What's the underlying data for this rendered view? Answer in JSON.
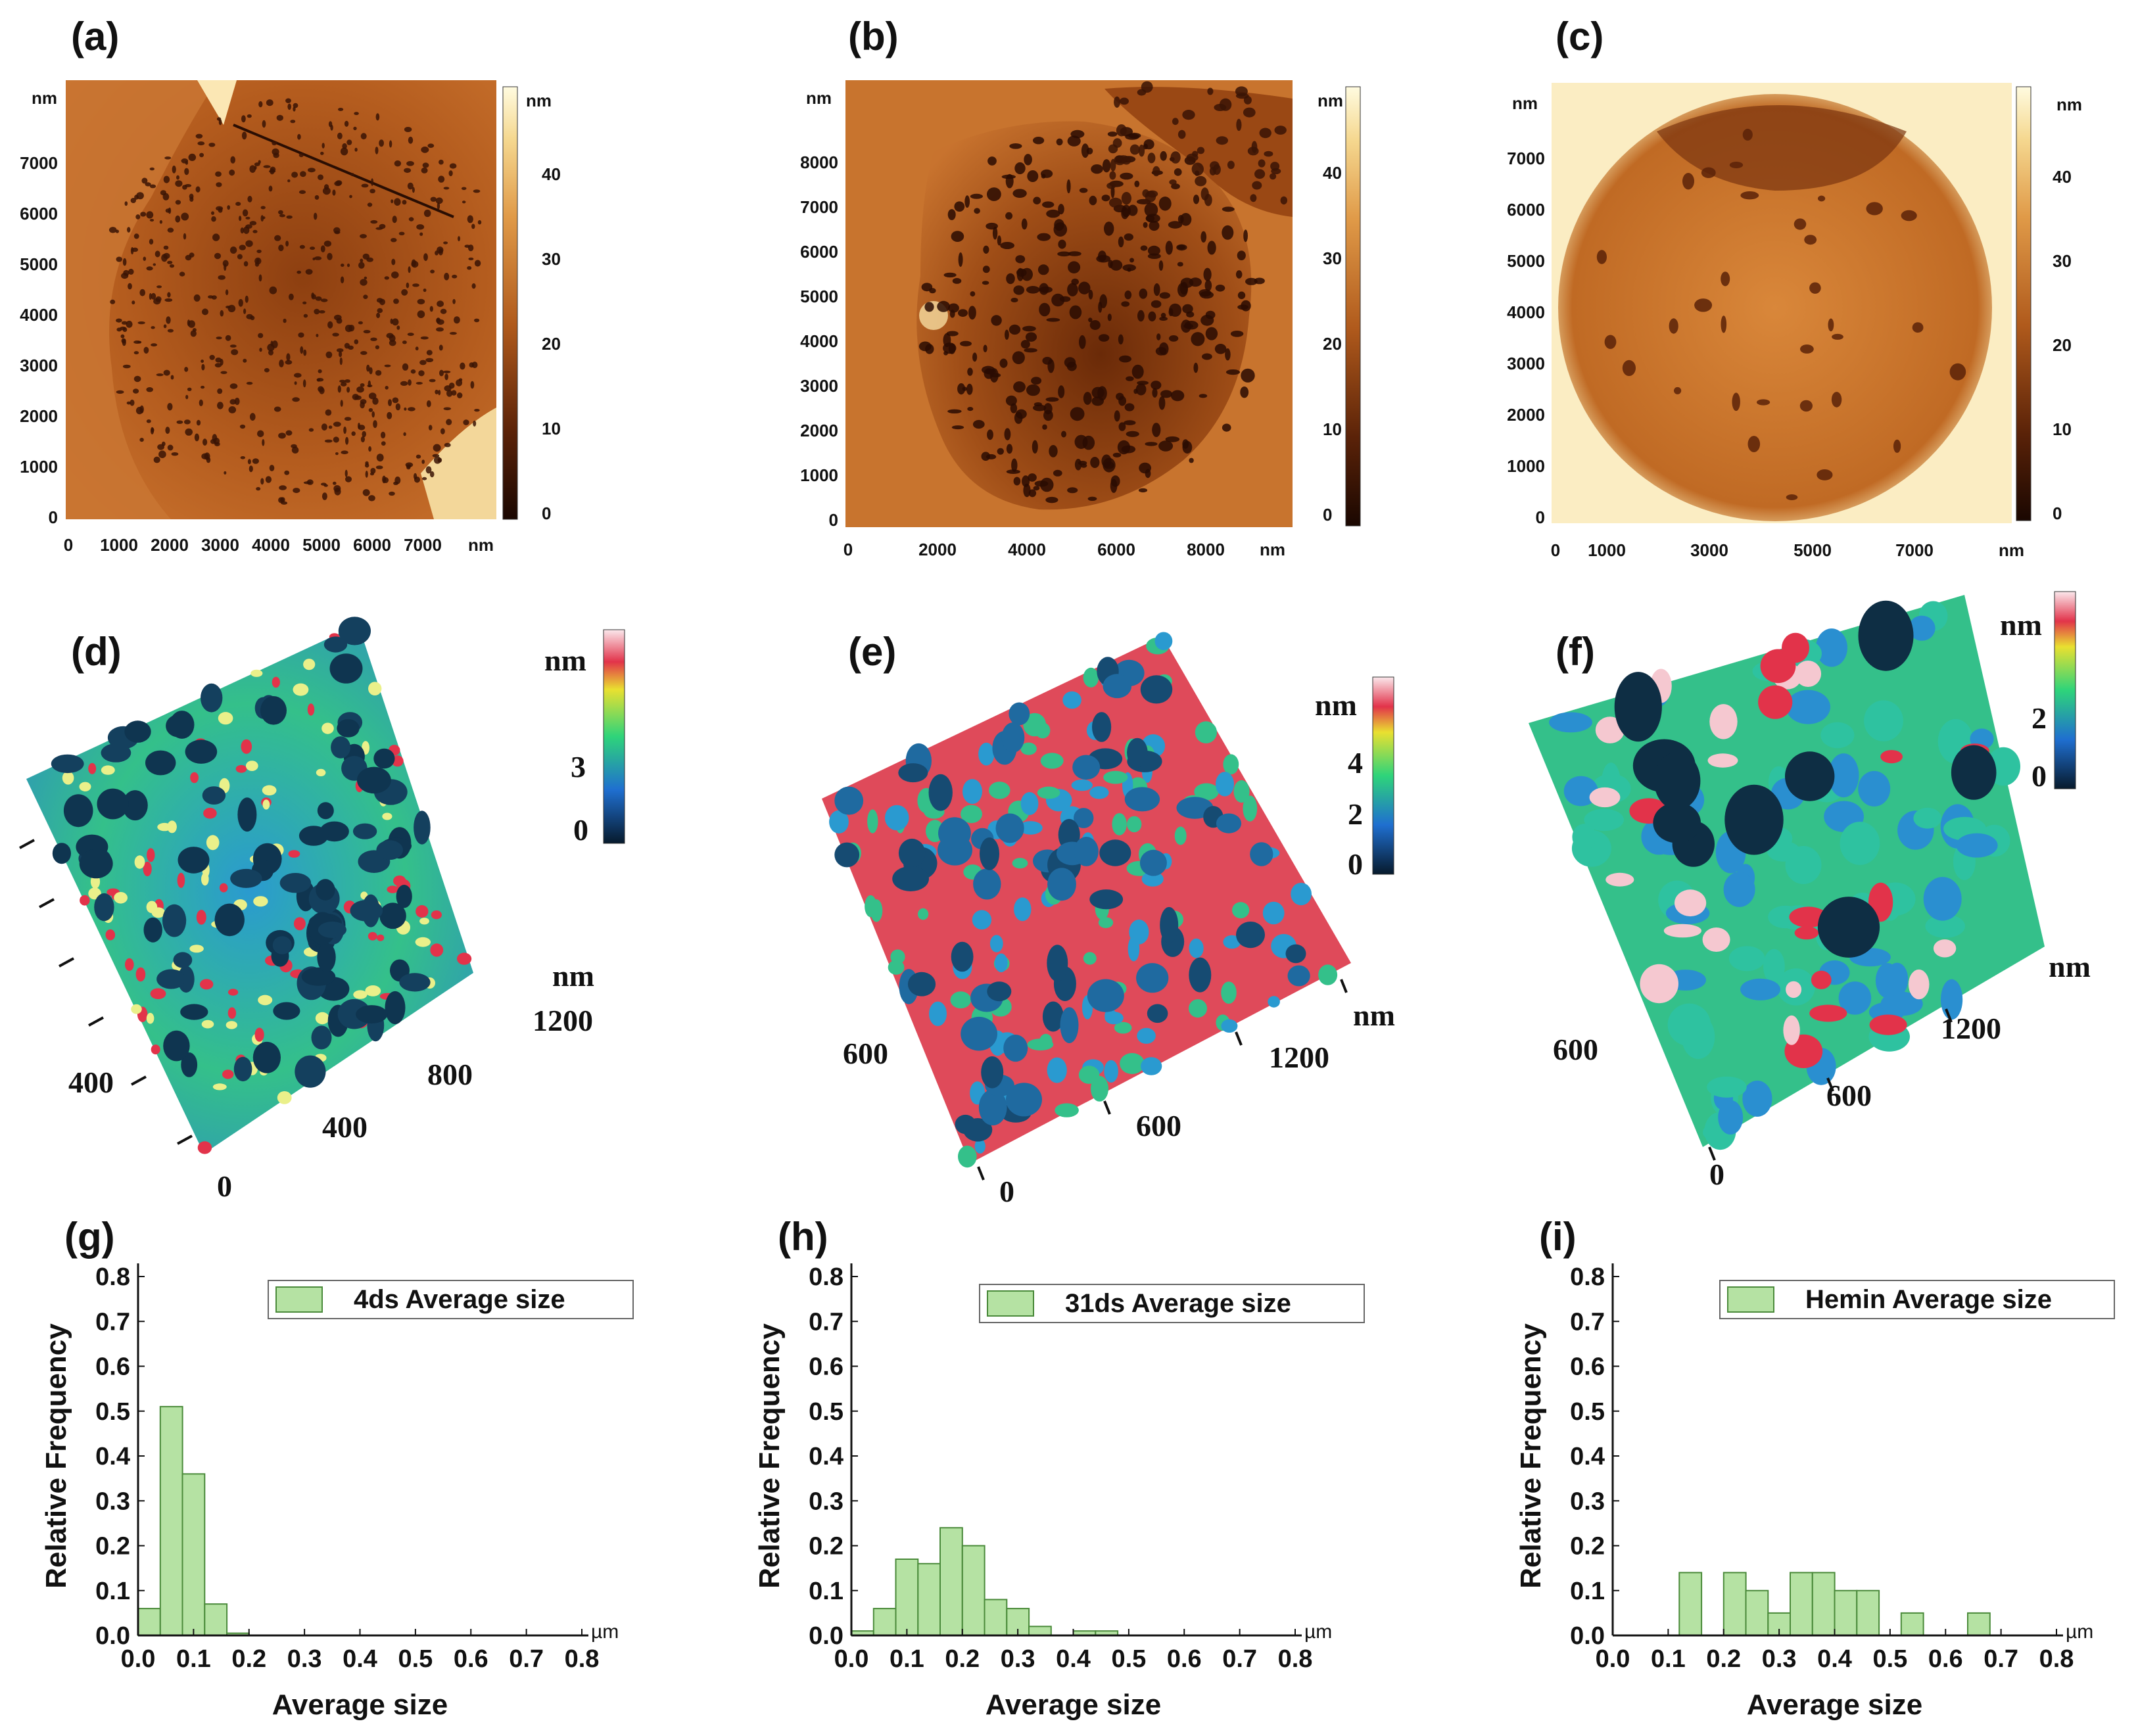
{
  "panels": {
    "a": {
      "label": "(a)",
      "unit": "nm",
      "colorbar_unit": "nm",
      "x_ticks": [
        "0",
        "1000",
        "2000",
        "3000",
        "4000",
        "5000",
        "6000",
        "7000"
      ],
      "y_ticks": [
        "0",
        "1000",
        "2000",
        "3000",
        "4000",
        "5000",
        "6000",
        "7000"
      ],
      "cb_ticks": [
        "0",
        "10",
        "20",
        "30",
        "40"
      ]
    },
    "b": {
      "label": "(b)",
      "unit": "nm",
      "colorbar_unit": "nm",
      "x_ticks": [
        "0",
        "2000",
        "4000",
        "6000",
        "8000"
      ],
      "y_ticks": [
        "0",
        "1000",
        "2000",
        "3000",
        "4000",
        "5000",
        "6000",
        "7000",
        "8000"
      ],
      "cb_ticks": [
        "0",
        "10",
        "20",
        "30",
        "40"
      ]
    },
    "c": {
      "label": "(c)",
      "unit": "nm",
      "colorbar_unit": "nm",
      "x_ticks": [
        "0",
        "1000",
        "3000",
        "5000",
        "7000"
      ],
      "y_ticks": [
        "0",
        "1000",
        "2000",
        "3000",
        "4000",
        "5000",
        "6000",
        "7000"
      ],
      "cb_ticks": [
        "0",
        "10",
        "20",
        "30",
        "40"
      ]
    },
    "d": {
      "label": "(d)",
      "unit": "nm",
      "colorbar_unit": "nm",
      "cb_ticks": [
        "0",
        "3"
      ],
      "axis_ticks": [
        "0",
        "400",
        "800",
        "1200",
        "400"
      ]
    },
    "e": {
      "label": "(e)",
      "unit": "nm",
      "colorbar_unit": "nm",
      "cb_ticks": [
        "0",
        "2",
        "4"
      ],
      "axis_ticks": [
        "0",
        "600",
        "1200",
        "600"
      ]
    },
    "f": {
      "label": "(f)",
      "unit": "nm",
      "colorbar_unit": "nm",
      "cb_ticks": [
        "0",
        "2"
      ],
      "axis_ticks": [
        "0",
        "600",
        "1200",
        "600"
      ]
    }
  },
  "chart_data": [
    {
      "id": "g",
      "panel_label": "(g)",
      "type": "bar",
      "legend": "4ds Average size",
      "xlabel": "Average size",
      "ylabel": "Relative Frequency",
      "x_unit": "µm",
      "xlim": [
        0,
        0.8
      ],
      "ylim": [
        0,
        0.8
      ],
      "bin_width": 0.04,
      "bins": [
        {
          "x0": 0.0,
          "value": 0.06
        },
        {
          "x0": 0.04,
          "value": 0.51
        },
        {
          "x0": 0.08,
          "value": 0.36
        },
        {
          "x0": 0.12,
          "value": 0.07
        },
        {
          "x0": 0.16,
          "value": 0.005
        }
      ]
    },
    {
      "id": "h",
      "panel_label": "(h)",
      "type": "bar",
      "legend": "31ds Average size",
      "xlabel": "Average size",
      "ylabel": "Relative Frequency",
      "x_unit": "µm",
      "xlim": [
        0,
        0.8
      ],
      "ylim": [
        0,
        0.8
      ],
      "bin_width": 0.04,
      "bins": [
        {
          "x0": 0.0,
          "value": 0.01
        },
        {
          "x0": 0.04,
          "value": 0.06
        },
        {
          "x0": 0.08,
          "value": 0.17
        },
        {
          "x0": 0.12,
          "value": 0.16
        },
        {
          "x0": 0.16,
          "value": 0.24
        },
        {
          "x0": 0.2,
          "value": 0.2
        },
        {
          "x0": 0.24,
          "value": 0.08
        },
        {
          "x0": 0.28,
          "value": 0.06
        },
        {
          "x0": 0.32,
          "value": 0.02
        },
        {
          "x0": 0.4,
          "value": 0.01
        },
        {
          "x0": 0.44,
          "value": 0.01
        }
      ]
    },
    {
      "id": "i",
      "panel_label": "(i)",
      "type": "bar",
      "legend": "Hemin  Average size",
      "xlabel": "Average size",
      "ylabel": "Relative Frequency",
      "x_unit": "µm",
      "xlim": [
        0,
        0.8
      ],
      "ylim": [
        0,
        0.8
      ],
      "bin_width": 0.04,
      "bins": [
        {
          "x0": 0.12,
          "value": 0.14
        },
        {
          "x0": 0.2,
          "value": 0.14
        },
        {
          "x0": 0.24,
          "value": 0.1
        },
        {
          "x0": 0.28,
          "value": 0.05
        },
        {
          "x0": 0.32,
          "value": 0.14
        },
        {
          "x0": 0.36,
          "value": 0.14
        },
        {
          "x0": 0.4,
          "value": 0.1
        },
        {
          "x0": 0.44,
          "value": 0.1
        },
        {
          "x0": 0.52,
          "value": 0.05
        },
        {
          "x0": 0.64,
          "value": 0.05
        }
      ]
    }
  ],
  "hist_ticks": {
    "x": [
      "0.0",
      "0.1",
      "0.2",
      "0.3",
      "0.4",
      "0.5",
      "0.6",
      "0.7",
      "0.8"
    ],
    "y": [
      "0.0",
      "0.1",
      "0.2",
      "0.3",
      "0.4",
      "0.5",
      "0.6",
      "0.7",
      "0.8"
    ]
  },
  "colors": {
    "bar_fill": "#b5e2a3",
    "bar_edge": "#4a8a3a",
    "afm_dark": "#2a0e03",
    "afm_mid": "#b05a1c",
    "afm_light": "#fff6c8"
  }
}
